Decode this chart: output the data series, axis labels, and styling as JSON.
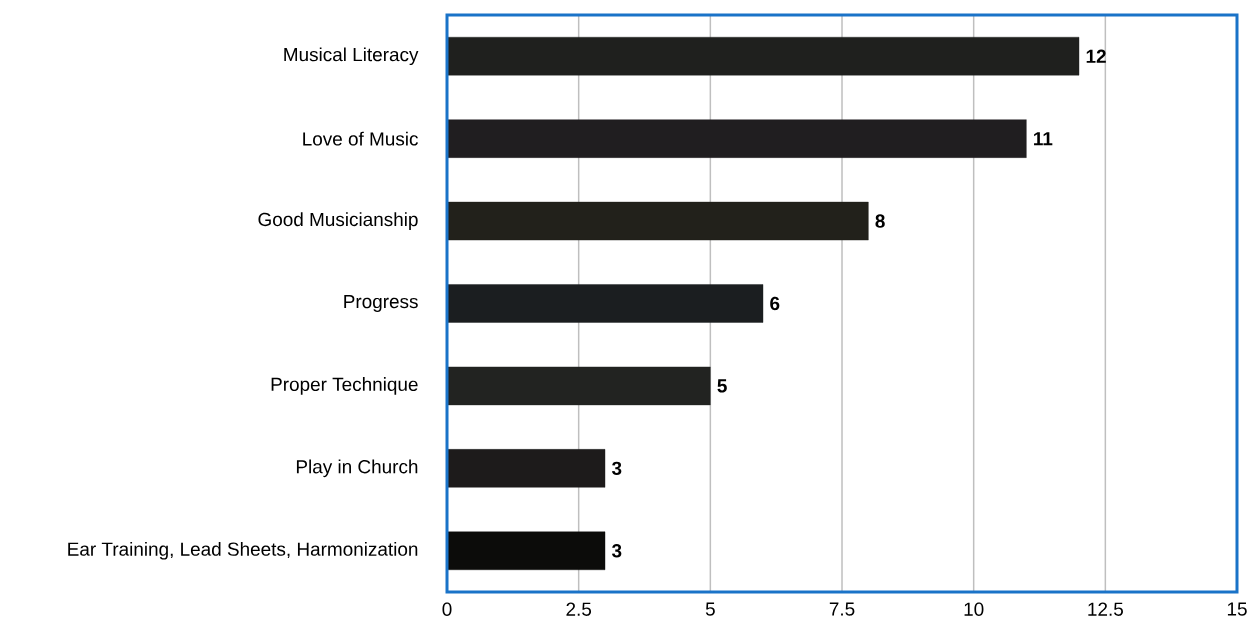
{
  "chart_data": {
    "type": "bar",
    "orientation": "horizontal",
    "categories": [
      "Musical Literacy",
      "Love of Music",
      "Good Musicianship",
      "Progress",
      "Proper Technique",
      "Play in Church",
      "Ear Training, Lead Sheets, Harmonization"
    ],
    "values": [
      12,
      11,
      8,
      6,
      5,
      3,
      3
    ],
    "colors": [
      "#1f201e",
      "#201e20",
      "#22211b",
      "#1b1e20",
      "#222321",
      "#1d1b1b",
      "#0c0c0a"
    ],
    "xlim": [
      0,
      15
    ],
    "xticks": [
      0,
      2.5,
      5,
      7.5,
      10,
      12.5,
      15
    ],
    "grid": "x",
    "data_labels": true
  }
}
